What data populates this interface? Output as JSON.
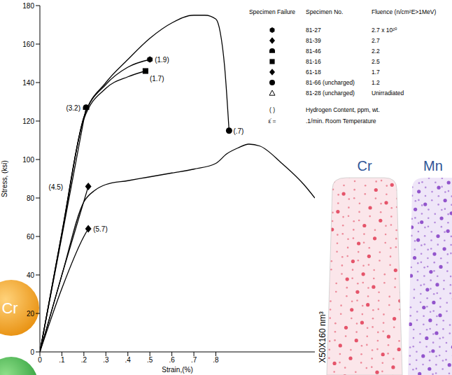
{
  "chart_data": {
    "type": "line",
    "x_label": "Strain,(%)",
    "y_label": "Stress, (ksi)",
    "xlim": [
      0,
      1.25
    ],
    "xticks": [
      0,
      {
        "value": 0.1,
        "label": ".1"
      },
      {
        "value": 0.2,
        "label": ".2"
      },
      {
        "value": 0.3,
        "label": ".3"
      },
      {
        "value": 0.4,
        "label": ".4"
      },
      {
        "value": 0.5,
        "label": ".5"
      },
      {
        "value": 0.6,
        "label": ".6"
      },
      {
        "value": 0.7,
        "label": ".7"
      },
      {
        "value": 0.8,
        "label": ".8"
      }
    ],
    "ylim": [
      0,
      180
    ],
    "yticks": [
      0,
      20,
      40,
      60,
      80,
      100,
      120,
      140,
      160,
      180
    ],
    "grid": false,
    "legend": "upper right",
    "legend_headers": [
      "Specimen Failure",
      "Specimen No.",
      "Fluence (n/cm²E>1MeV)"
    ],
    "legend_notes": [
      {
        "symbol": "( )",
        "text": "Hydrogen Content, ppm, wt."
      },
      {
        "symbol": "ε̇ =",
        "text": ".1/min. Room Temperature"
      }
    ],
    "series": [
      {
        "name": "81-27",
        "fluence": "2.7 x 10²⁰",
        "marker": "hexagon",
        "color": "#000000",
        "line_style": "solid",
        "failure_label": "(1.9)",
        "x": [
          0,
          0.1,
          0.2,
          0.3,
          0.4,
          0.5
        ],
        "values": [
          0,
          62,
          122,
          139,
          148,
          152
        ]
      },
      {
        "name": "81-39",
        "fluence": "2.7",
        "marker": "diamond",
        "color": "#000000",
        "line_style": "solid",
        "failure_label": "(4.5)",
        "x": [
          0,
          0.1,
          0.22
        ],
        "values": [
          0,
          40,
          86
        ]
      },
      {
        "name": "81-46",
        "fluence": "2.2",
        "marker": "half_circle",
        "color": "#000000",
        "line_style": "solid",
        "failure_label": "(3.2)",
        "x": [
          0,
          0.1,
          0.21
        ],
        "values": [
          0,
          60,
          127
        ]
      },
      {
        "name": "81-16",
        "fluence": "2.5",
        "marker": "square",
        "color": "#000000",
        "line_style": "solid",
        "failure_label": "(1.7)",
        "x": [
          0,
          0.1,
          0.2,
          0.3,
          0.4,
          0.48
        ],
        "values": [
          0,
          61,
          121,
          137,
          143,
          146
        ]
      },
      {
        "name": "61-18",
        "fluence": "1.7",
        "marker": "diamond",
        "color": "#000000",
        "line_style": "solid",
        "failure_label": "(5.7)",
        "x": [
          0,
          0.1,
          0.2,
          0.22
        ],
        "values": [
          0,
          33,
          60,
          64
        ]
      },
      {
        "name": "81-66 (uncharged)",
        "fluence": "1.2",
        "marker": "circle",
        "color": "#000000",
        "line_style": "solid",
        "failure_label": "(.7)",
        "x": [
          0,
          0.1,
          0.2,
          0.3,
          0.4,
          0.5,
          0.6,
          0.7,
          0.75,
          0.8,
          0.82,
          0.84,
          0.86
        ],
        "values": [
          0,
          62,
          122,
          140,
          152,
          163,
          171,
          175,
          175,
          173,
          166,
          148,
          115
        ]
      },
      {
        "name": "81-28 (uncharged)",
        "fluence": "Unirradiated",
        "marker": "triangle_open",
        "color": "#000000",
        "line_style": "solid",
        "x": [
          0,
          0.1,
          0.2,
          0.25,
          0.3,
          0.4,
          0.5,
          0.6,
          0.7,
          0.8,
          0.85,
          0.9,
          0.95,
          1.0,
          1.1,
          1.2,
          1.25
        ],
        "values": [
          0,
          40,
          78,
          84,
          87,
          89,
          91,
          93,
          95,
          98,
          103,
          106,
          108,
          107,
          98,
          87,
          80
        ]
      }
    ]
  },
  "overlays": {
    "element_badge": "Cr",
    "atom_map_labels": [
      "Cr",
      "Mn"
    ],
    "atom_map_volume": "X50X160 nm³"
  }
}
